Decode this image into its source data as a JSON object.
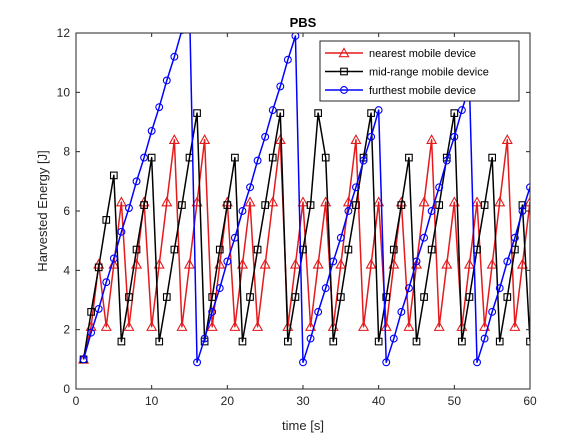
{
  "chart_data": {
    "type": "line",
    "title": "PBS",
    "xlabel": "time [s]",
    "ylabel": "Harvested Energy [J]",
    "xlim": [
      0,
      60
    ],
    "ylim": [
      0,
      12
    ],
    "xticks": [
      0,
      10,
      20,
      30,
      40,
      50,
      60
    ],
    "yticks": [
      0,
      2,
      4,
      6,
      8,
      10,
      12
    ],
    "grid": false,
    "legend_position": "top-right",
    "series": [
      {
        "name": "nearest mobile device",
        "color": "#e41a1c",
        "marker": "triangle",
        "x": [
          1,
          2,
          3,
          4,
          5,
          6,
          7,
          8,
          9,
          10,
          11,
          12,
          13,
          14,
          15,
          16,
          17,
          18,
          19,
          20,
          21,
          22,
          23,
          24,
          25,
          26,
          27,
          28,
          29,
          30,
          31,
          32,
          33,
          34,
          35,
          36,
          37,
          38,
          39,
          40,
          41,
          42,
          43,
          44,
          45,
          46,
          47,
          48,
          49,
          50,
          51,
          52,
          53,
          54,
          55,
          56,
          57,
          58,
          59,
          60
        ],
        "y": [
          1.0,
          2.1,
          4.2,
          2.1,
          4.2,
          6.3,
          2.1,
          4.2,
          6.3,
          2.1,
          4.2,
          6.3,
          8.4,
          2.1,
          4.2,
          6.3,
          8.4,
          2.1,
          4.2,
          6.3,
          2.1,
          4.2,
          6.3,
          2.1,
          4.2,
          6.3,
          8.4,
          2.1,
          4.2,
          6.3,
          2.1,
          4.2,
          6.3,
          2.1,
          4.2,
          6.3,
          8.4,
          2.1,
          4.2,
          6.3,
          2.1,
          4.2,
          6.3,
          2.1,
          4.2,
          6.3,
          8.4,
          2.1,
          4.2,
          6.3,
          2.1,
          4.2,
          6.3,
          2.1,
          4.2,
          6.3,
          8.4,
          2.1,
          4.2,
          6.3
        ]
      },
      {
        "name": "mid-range mobile device",
        "color": "#000000",
        "marker": "square",
        "x": [
          1,
          2,
          3,
          4,
          5,
          6,
          7,
          8,
          9,
          10,
          11,
          12,
          13,
          14,
          15,
          16,
          17,
          18,
          19,
          20,
          21,
          22,
          23,
          24,
          25,
          26,
          27,
          28,
          29,
          30,
          31,
          32,
          33,
          34,
          35,
          36,
          37,
          38,
          39,
          40,
          41,
          42,
          43,
          44,
          45,
          46,
          47,
          48,
          49,
          50,
          51,
          52,
          53,
          54,
          55,
          56,
          57,
          58,
          59,
          60
        ],
        "y": [
          1.0,
          2.6,
          4.1,
          5.7,
          7.2,
          1.6,
          3.1,
          4.7,
          6.2,
          7.8,
          1.6,
          3.1,
          4.7,
          6.2,
          7.8,
          9.3,
          1.6,
          3.1,
          4.7,
          6.2,
          7.8,
          1.6,
          3.1,
          4.7,
          6.2,
          7.8,
          9.3,
          1.6,
          3.1,
          4.7,
          6.2,
          9.3,
          7.8,
          1.6,
          3.1,
          4.7,
          6.2,
          7.8,
          9.3,
          1.6,
          3.1,
          4.7,
          6.2,
          7.8,
          1.6,
          3.1,
          4.7,
          6.2,
          7.8,
          9.3,
          1.6,
          3.1,
          4.7,
          6.2,
          7.8,
          1.6,
          3.1,
          4.7,
          6.2,
          1.6
        ]
      },
      {
        "name": "furthest mobile device",
        "color": "#0000ff",
        "marker": "circle",
        "x": [
          1,
          2,
          3,
          4,
          5,
          6,
          7,
          8,
          9,
          10,
          11,
          12,
          13,
          14,
          15,
          16,
          17,
          18,
          19,
          20,
          21,
          22,
          23,
          24,
          25,
          26,
          27,
          28,
          29,
          30,
          31,
          32,
          33,
          34,
          35,
          36,
          37,
          38,
          39,
          40,
          41,
          42,
          43,
          44,
          45,
          46,
          47,
          48,
          49,
          50,
          51,
          52,
          53,
          54,
          55,
          56,
          57,
          58,
          59,
          60
        ],
        "y": [
          1.0,
          1.9,
          2.7,
          3.6,
          4.4,
          5.3,
          6.1,
          7.0,
          7.8,
          8.7,
          9.5,
          10.4,
          11.2,
          12.1,
          12.9,
          0.9,
          1.7,
          2.6,
          3.4,
          4.3,
          5.1,
          6.0,
          6.8,
          7.7,
          8.5,
          9.4,
          10.2,
          11.1,
          11.9,
          0.9,
          1.7,
          2.6,
          3.4,
          4.3,
          5.1,
          6.0,
          6.8,
          7.7,
          8.5,
          9.4,
          0.9,
          1.7,
          2.6,
          3.4,
          4.3,
          5.1,
          6.0,
          6.8,
          7.7,
          8.5,
          9.4,
          10.2,
          0.9,
          1.7,
          2.6,
          3.4,
          4.3,
          5.1,
          6.0,
          6.8
        ]
      }
    ]
  }
}
